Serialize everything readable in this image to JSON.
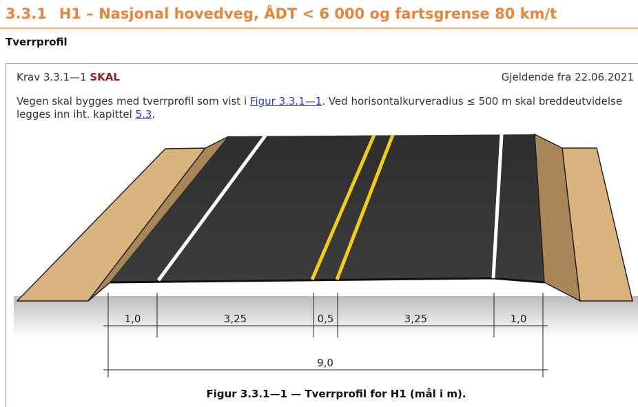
{
  "heading": {
    "number": "3.3.1",
    "title": "H1 – Nasjonal hovedveg, ÅDT < 6 000 og fartsgrense 80 km/t"
  },
  "subheading": "Tverrprofil",
  "requirement": {
    "id": "Krav 3.3.1—1",
    "level": "SKAL",
    "valid_from": "Gjeldende fra 22.06.2021",
    "text": {
      "part1": "Vegen skal bygges med tverrprofil som vist i ",
      "link1": "Figur 3.3.1—1",
      "part2": ". Ved horisontalkurveradius ≤ 500 m skal breddeutvidelse legges inn iht. kapittel ",
      "link2": "5.3",
      "part3": "."
    }
  },
  "figure": {
    "dimensions": [
      "1,0",
      "3,25",
      "0,5",
      "3,25",
      "1,0"
    ],
    "total": "9,0",
    "caption": "Figur 3.3.1—1 — Tverrprofil for H1 (mål i m)."
  }
}
